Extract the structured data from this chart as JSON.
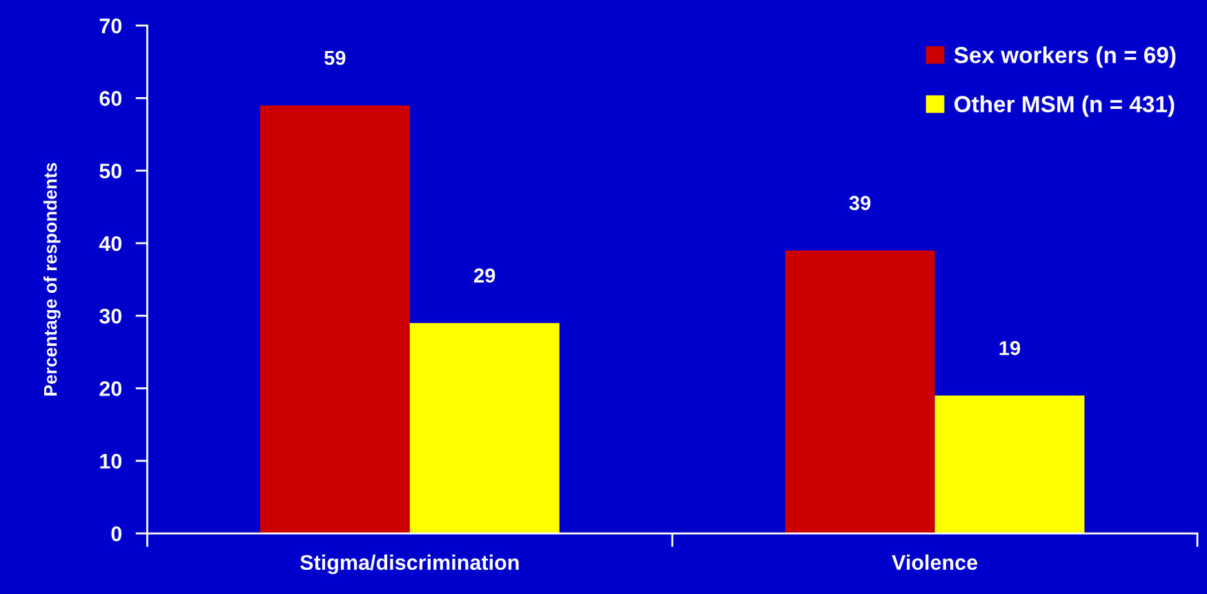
{
  "chart_data": {
    "type": "bar",
    "ylabel": "Percentage of respondents",
    "categories": [
      "Stigma/discrimination",
      "Violence"
    ],
    "series": [
      {
        "name": "Sex workers (n = 69)",
        "color": "#cc0000",
        "values": [
          59,
          39
        ]
      },
      {
        "name": "Other MSM (n = 431)",
        "color": "#ffff00",
        "values": [
          29,
          19
        ]
      }
    ],
    "ylim": [
      0,
      70
    ],
    "yticks": [
      0,
      10,
      20,
      30,
      40,
      50,
      60,
      70
    ],
    "data_labels": true,
    "legend": "top right",
    "grid": false
  }
}
